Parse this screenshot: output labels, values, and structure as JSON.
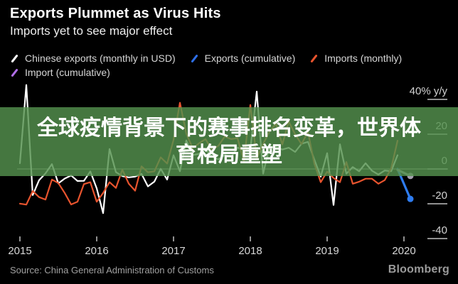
{
  "header": {
    "title": "Exports Plummet as Virus Hits",
    "subtitle": "Imports yet to see major effect"
  },
  "legend": [
    {
      "label": "Chinese exports (monthly in USD)",
      "color": "#ffffff"
    },
    {
      "label": "Exports (cumulative)",
      "color": "#2e6fe8"
    },
    {
      "label": "Imports (monthly)",
      "color": "#e8542e"
    },
    {
      "label": "Import (cumulative)",
      "color": "#b06ee8"
    }
  ],
  "overlay": {
    "line1": "全球疫情背景下的赛事排名变革，世界体",
    "line2": "育格局重塑"
  },
  "footer": {
    "source": "Source: China General Administration of Customs",
    "brand": "Bloomberg"
  },
  "chart_data": {
    "type": "line",
    "title": "Exports Plummet as Virus Hits",
    "subtitle": "Imports yet to see major effect",
    "ylabel": "% y/y",
    "ylim": [
      -45,
      55
    ],
    "grid": "zero-line-only",
    "legend_position": "top",
    "y_ticks": [
      {
        "value": 40,
        "label": "40% y/y"
      },
      {
        "value": 20,
        "label": "20"
      },
      {
        "value": 0,
        "label": "0"
      },
      {
        "value": -20,
        "label": "-20"
      },
      {
        "value": -40,
        "label": "-40"
      }
    ],
    "x_ticks": [
      {
        "month_index": 0,
        "label": "2015"
      },
      {
        "month_index": 12,
        "label": "2016"
      },
      {
        "month_index": 24,
        "label": "2017"
      },
      {
        "month_index": 36,
        "label": "2018"
      },
      {
        "month_index": 48,
        "label": "2019"
      },
      {
        "month_index": 60,
        "label": "2020"
      }
    ],
    "x_start": "2015-01",
    "x_frequency": "monthly",
    "series": [
      {
        "name": "Chinese exports (monthly in USD)",
        "color": "#ffffff",
        "width": 2.2,
        "start_index": 0,
        "values": [
          3.3,
          48.3,
          -15.0,
          -6.4,
          -2.5,
          2.8,
          -8.3,
          -5.5,
          -3.7,
          -6.9,
          -6.8,
          -1.4,
          -11.2,
          -25.4,
          11.5,
          -1.8,
          -4.1,
          -4.8,
          -4.4,
          -2.8,
          -10.0,
          -7.3,
          0.1,
          -6.1,
          7.9,
          -1.3,
          16.4,
          8.0,
          8.7,
          11.3,
          7.2,
          5.5,
          8.1,
          6.9,
          12.3,
          10.9,
          11.1,
          44.5,
          -2.7,
          12.9,
          12.6,
          11.2,
          12.2,
          9.8,
          14.5,
          15.6,
          5.4,
          -4.4,
          9.1,
          -20.7,
          14.2,
          -2.7,
          1.1,
          -1.3,
          3.3,
          -1.0,
          -3.2,
          -0.9,
          -1.3,
          7.9
        ]
      },
      {
        "name": "Imports (monthly)",
        "color": "#e8542e",
        "width": 2.2,
        "start_index": 0,
        "values": [
          -19.9,
          -20.5,
          -12.7,
          -16.2,
          -17.6,
          -6.1,
          -8.1,
          -13.8,
          -20.4,
          -18.8,
          -8.7,
          -7.6,
          -18.8,
          -13.8,
          -7.6,
          -10.9,
          -0.4,
          -8.4,
          -12.5,
          1.5,
          -1.9,
          -1.4,
          6.7,
          3.1,
          16.7,
          38.1,
          20.3,
          11.9,
          14.8,
          17.2,
          11.0,
          13.3,
          18.6,
          17.2,
          17.7,
          4.5,
          36.8,
          6.1,
          14.4,
          21.5,
          26.0,
          14.1,
          27.3,
          19.9,
          14.3,
          21.4,
          3.0,
          -7.6,
          -1.5,
          -5.2,
          -7.6,
          4.0,
          -8.5,
          -7.3,
          -5.6,
          -5.6,
          -8.5,
          -6.4,
          0.3,
          16.3
        ]
      },
      {
        "name": "Exports (cumulative)",
        "color": "#2e7cf0",
        "width": 3.2,
        "end_marker": true,
        "points": [
          {
            "m": 59,
            "v": 0
          },
          {
            "m": 61,
            "v": -17.2
          }
        ]
      },
      {
        "name": "Import (cumulative)",
        "color": "#a3a0ad",
        "width": 3.2,
        "end_marker": true,
        "points": [
          {
            "m": 59,
            "v": -0.5
          },
          {
            "m": 61,
            "v": -4.0
          }
        ]
      }
    ]
  }
}
